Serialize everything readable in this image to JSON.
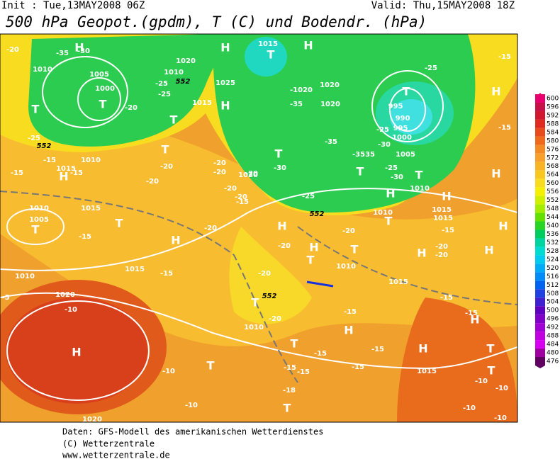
{
  "header": {
    "init": "Init : Tue,13MAY2008 06Z",
    "valid": "Valid: Thu,15MAY2008 18Z",
    "title": "500 hPa Geopot.(gpdm), T (C) und Bodendr. (hPa)"
  },
  "colorbar": {
    "levels": [
      "600",
      "596",
      "592",
      "588",
      "584",
      "580",
      "576",
      "572",
      "568",
      "564",
      "560",
      "556",
      "552",
      "548",
      "544",
      "540",
      "536",
      "532",
      "528",
      "524",
      "520",
      "516",
      "512",
      "508",
      "504",
      "500",
      "496",
      "492",
      "488",
      "484",
      "480",
      "476"
    ],
    "colors": [
      "#e8006e",
      "#c81048",
      "#d01830",
      "#e02c20",
      "#e84c1c",
      "#f06a1c",
      "#f48a24",
      "#f8a02c",
      "#f8b424",
      "#f8c820",
      "#f8dc20",
      "#f4f000",
      "#d0f000",
      "#a4ec00",
      "#64e000",
      "#28d424",
      "#00cc60",
      "#00d4a0",
      "#00dcd0",
      "#00ccf0",
      "#00acf8",
      "#008cf8",
      "#0064f0",
      "#2040e0",
      "#4020d0",
      "#6000c0",
      "#8000c8",
      "#a000d4",
      "#c000e0",
      "#d800f0",
      "#a000a0",
      "#600060"
    ]
  },
  "map_labels": [
    "-20",
    "-35",
    "-30",
    "H",
    "1010",
    "1005",
    "1000",
    "T",
    "T",
    "-20",
    "-25",
    "-25",
    "1010",
    "1020",
    "552",
    "H",
    "1025",
    "H",
    "1015",
    "T",
    "1015",
    "T",
    "H",
    "-1020",
    "-35",
    "1020",
    "1020",
    "T",
    "-25",
    "-15",
    "H",
    "-15",
    "995",
    "990",
    "995",
    "1000",
    "-25",
    "-30",
    "1005",
    "-35",
    "T",
    "-3535",
    "-25",
    "-30",
    "T",
    "-30",
    "T",
    "1010",
    "H",
    "H",
    "1015",
    "1015",
    "H",
    "-25",
    "552",
    "1010",
    "T",
    "-20",
    "1020",
    "-20",
    "-20",
    "-20",
    "-20",
    "-15",
    "T",
    "-20",
    "-20",
    "-25",
    "552",
    "1010",
    "-15",
    "1015",
    "-15",
    "-15",
    "H",
    "1010",
    "1005",
    "T",
    "1015",
    "T",
    "-20",
    "H",
    "-15",
    "H",
    "-20",
    "-20",
    "T",
    "H",
    "T",
    "1010",
    "-20",
    "1015",
    "H",
    "-20",
    "-20",
    "-15",
    "H",
    "H",
    "1010",
    "1015",
    "-15",
    "552",
    "T",
    "-20",
    "1010",
    "1020",
    "-10",
    "H",
    "-15",
    "H",
    "H",
    "-15",
    "-15",
    "T",
    "-15",
    "-15",
    "H",
    "T",
    "T",
    "-10",
    "-15",
    "-15",
    "T",
    "-15",
    "1015",
    "-10",
    "-10",
    "-18",
    "T",
    "-10",
    "-10",
    "-10",
    "1020",
    "-5"
  ],
  "footer": [
    "Daten: GFS-Modell des amerikanischen Wetterdienstes",
    "(C) Wetterzentrale",
    "www.wetterzentrale.de"
  ]
}
